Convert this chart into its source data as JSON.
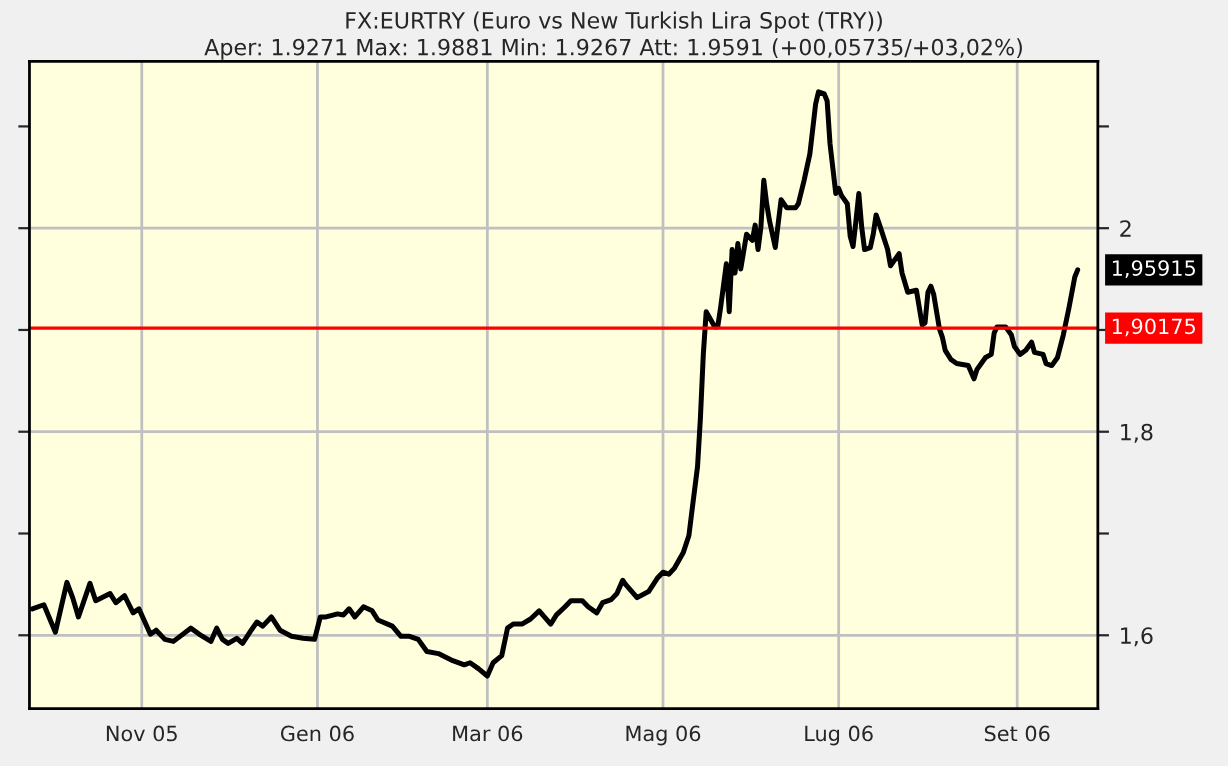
{
  "chart_data": {
    "type": "line",
    "title": "FX:EURTRY (Euro vs New Turkish Lira Spot (TRY))",
    "subtitle": "Aper: 1.9271 Max: 1.9881 Min: 1.9267 Att: 1.9591 (+00,05735/+03,02%)",
    "series": [
      {
        "color": "#000000",
        "x": [
          "2005-09-24",
          "2005-09-28",
          "2005-10-02",
          "2005-10-06",
          "2005-10-08",
          "2005-10-10",
          "2005-10-14",
          "2005-10-16",
          "2005-10-21",
          "2005-10-23",
          "2005-10-26",
          "2005-10-29",
          "2005-10-31",
          "2005-11-04",
          "2005-11-06",
          "2005-11-09",
          "2005-11-12",
          "2005-11-18",
          "2005-11-21",
          "2005-11-25",
          "2005-11-27",
          "2005-11-29",
          "2005-12-01",
          "2005-12-04",
          "2005-12-06",
          "2005-12-09",
          "2005-12-11",
          "2005-12-13",
          "2005-12-16",
          "2005-12-19",
          "2005-12-23",
          "2005-12-27",
          "2005-12-31",
          "2006-01-02",
          "2006-01-04",
          "2006-01-08",
          "2006-01-10",
          "2006-01-12",
          "2006-01-14",
          "2006-01-17",
          "2006-01-20",
          "2006-01-22",
          "2006-01-27",
          "2006-01-30",
          "2006-02-02",
          "2006-02-05",
          "2006-02-08",
          "2006-02-12",
          "2006-02-17",
          "2006-02-21",
          "2006-02-23",
          "2006-02-26",
          "2006-03-01",
          "2006-03-03",
          "2006-03-06",
          "2006-03-08",
          "2006-03-10",
          "2006-03-13",
          "2006-03-16",
          "2006-03-19",
          "2006-03-23",
          "2006-03-25",
          "2006-03-28",
          "2006-03-30",
          "2006-04-03",
          "2006-04-05",
          "2006-04-08",
          "2006-04-10",
          "2006-04-13",
          "2006-04-15",
          "2006-04-17",
          "2006-04-18",
          "2006-04-22",
          "2006-04-26",
          "2006-04-29",
          "2006-05-01",
          "2006-05-03",
          "2006-05-05",
          "2006-05-08",
          "2006-05-10",
          "2006-05-11",
          "2006-05-13",
          "2006-05-14",
          "2006-05-15",
          "2006-05-16",
          "2006-05-19",
          "2006-05-20",
          "2006-05-21",
          "2006-05-23",
          "2006-05-24",
          "2006-05-25",
          "2006-05-26",
          "2006-05-27",
          "2006-05-28",
          "2006-05-30",
          "2006-06-01",
          "2006-06-02",
          "2006-06-03",
          "2006-06-04",
          "2006-06-05",
          "2006-06-06",
          "2006-06-07",
          "2006-06-09",
          "2006-06-11",
          "2006-06-13",
          "2006-06-16",
          "2006-06-17",
          "2006-06-19",
          "2006-06-21",
          "2006-06-23",
          "2006-06-24",
          "2006-06-26",
          "2006-06-27",
          "2006-06-28",
          "2006-06-30",
          "2006-07-01",
          "2006-07-02",
          "2006-07-04",
          "2006-07-05",
          "2006-07-06",
          "2006-07-07",
          "2006-07-08",
          "2006-07-09",
          "2006-07-10",
          "2006-07-12",
          "2006-07-13",
          "2006-07-14",
          "2006-07-15",
          "2006-07-18",
          "2006-07-19",
          "2006-07-22",
          "2006-07-23",
          "2006-07-25",
          "2006-07-28",
          "2006-07-30",
          "2006-07-31",
          "2006-08-01",
          "2006-08-02",
          "2006-08-03",
          "2006-08-05",
          "2006-08-06",
          "2006-08-07",
          "2006-08-09",
          "2006-08-11",
          "2006-08-15",
          "2006-08-17",
          "2006-08-18",
          "2006-08-21",
          "2006-08-23",
          "2006-08-24",
          "2006-08-25",
          "2006-08-28",
          "2006-08-30",
          "2006-08-31",
          "2006-09-02",
          "2006-09-04",
          "2006-09-06",
          "2006-09-07",
          "2006-09-10",
          "2006-09-11",
          "2006-09-13",
          "2006-09-15",
          "2006-09-17",
          "2006-09-19",
          "2006-09-21",
          "2006-09-22"
        ],
        "values": [
          1.626,
          1.63,
          1.603,
          1.652,
          1.637,
          1.618,
          1.651,
          1.634,
          1.641,
          1.632,
          1.639,
          1.622,
          1.626,
          1.601,
          1.605,
          1.596,
          1.594,
          1.607,
          1.601,
          1.594,
          1.607,
          1.596,
          1.592,
          1.597,
          1.592,
          1.605,
          1.613,
          1.609,
          1.618,
          1.605,
          1.599,
          1.597,
          1.596,
          1.618,
          1.618,
          1.621,
          1.62,
          1.626,
          1.618,
          1.628,
          1.624,
          1.615,
          1.609,
          1.599,
          1.599,
          1.596,
          1.584,
          1.582,
          1.575,
          1.571,
          1.573,
          1.567,
          1.56,
          1.573,
          1.58,
          1.607,
          1.611,
          1.611,
          1.616,
          1.624,
          1.611,
          1.62,
          1.628,
          1.634,
          1.634,
          1.628,
          1.622,
          1.632,
          1.635,
          1.641,
          1.654,
          1.65,
          1.637,
          1.643,
          1.656,
          1.662,
          1.66,
          1.666,
          1.681,
          1.698,
          1.721,
          1.766,
          1.814,
          1.876,
          1.918,
          1.903,
          1.903,
          1.922,
          1.965,
          1.918,
          1.979,
          1.956,
          1.985,
          1.96,
          1.994,
          1.988,
          2.003,
          1.979,
          2.001,
          2.047,
          2.024,
          2.007,
          1.981,
          2.028,
          2.02,
          2.02,
          2.024,
          2.047,
          2.073,
          2.122,
          2.134,
          2.132,
          2.125,
          2.083,
          2.034,
          2.039,
          2.032,
          2.024,
          1.992,
          1.982,
          2.007,
          2.034,
          2.001,
          1.979,
          1.981,
          1.994,
          2.013,
          2.005,
          1.979,
          1.963,
          1.975,
          1.956,
          1.937,
          1.939,
          1.905,
          1.907,
          1.937,
          1.943,
          1.935,
          1.901,
          1.893,
          1.88,
          1.871,
          1.867,
          1.865,
          1.852,
          1.861,
          1.873,
          1.876,
          1.897,
          1.903,
          1.903,
          1.895,
          1.884,
          1.876,
          1.88,
          1.888,
          1.878,
          1.876,
          1.867,
          1.865,
          1.873,
          1.895,
          1.922,
          1.952,
          1.959
        ]
      }
    ],
    "xlim": [
      "2005-09-23",
      "2006-09-29"
    ],
    "xticks": [
      {
        "value": "2005-11-01",
        "label": "Nov 05"
      },
      {
        "value": "2006-01-01",
        "label": "Gen 06"
      },
      {
        "value": "2006-03-01",
        "label": "Mar 06"
      },
      {
        "value": "2006-05-01",
        "label": "Mag 06"
      },
      {
        "value": "2006-07-01",
        "label": "Lug 06"
      },
      {
        "value": "2006-09-01",
        "label": "Set 06"
      }
    ],
    "ylim": [
      1.528,
      2.164
    ],
    "yticks": [
      {
        "value": 1.6,
        "label": "1,6"
      },
      {
        "value": 1.7,
        "label": null
      },
      {
        "value": 1.8,
        "label": "1,8"
      },
      {
        "value": 1.9,
        "label": null
      },
      {
        "value": 2,
        "label": "2"
      },
      {
        "value": 2.1,
        "label": null
      }
    ],
    "ref_lines": [
      {
        "axis": "y",
        "value": 1.90175,
        "label": "1,90175",
        "color": "#ff0000"
      }
    ],
    "annotations": [
      {
        "text": "1,95915",
        "x": "2006-09-22",
        "y": 1.959
      }
    ],
    "grid": true,
    "legend": false,
    "marker": "none",
    "line_style": "solid"
  }
}
